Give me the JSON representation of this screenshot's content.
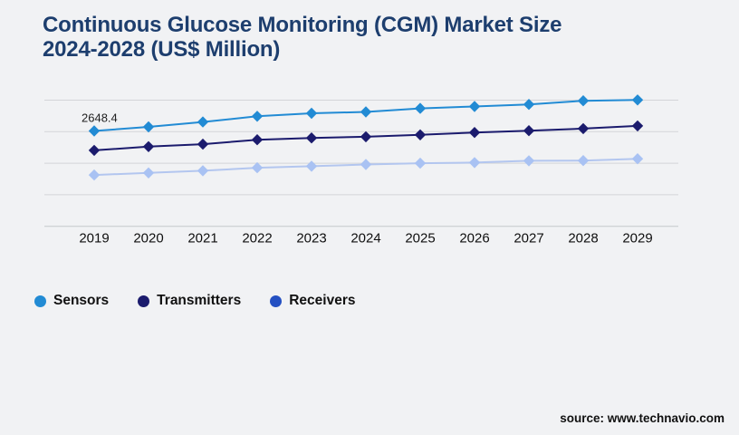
{
  "title": "Continuous Glucose Monitoring (CGM) Market Size\n2024-2028 (US$ Million)",
  "source": "source: www.technavio.com",
  "colors": {
    "background": "#f1f2f4",
    "title": "#1d3e6e",
    "grid": "#d4d5d8",
    "axis": "#c6c7ca",
    "text": "#111111",
    "data_label": "#1f1f1f"
  },
  "chart_data": {
    "type": "line",
    "title": "Continuous Glucose Monitoring (CGM) Market Size 2024-2028 (US$ Million)",
    "xlabel": "",
    "ylabel": "",
    "x": [
      "2019",
      "2020",
      "2021",
      "2022",
      "2023",
      "2024",
      "2025",
      "2026",
      "2027",
      "2028",
      "2029"
    ],
    "series": [
      {
        "name": "Sensors",
        "color": "#228bd4",
        "marker": "diamond",
        "values": [
          2648.4,
          2762,
          2898,
          3056,
          3140,
          3176,
          3276,
          3327,
          3385,
          3486,
          3508
        ]
      },
      {
        "name": "Transmitters",
        "color": "#1b1b6d",
        "marker": "diamond",
        "values": [
          2110,
          2212,
          2280,
          2404,
          2455,
          2488,
          2539,
          2606,
          2656,
          2714,
          2790
        ]
      },
      {
        "name": "Receivers",
        "color": "#b3c6ef",
        "marker_color": "#a9c2f3",
        "legend_color": "#2450c2",
        "marker": "diamond",
        "values": [
          1424,
          1482,
          1542,
          1625,
          1668,
          1718,
          1751,
          1769,
          1819,
          1826,
          1876
        ]
      }
    ],
    "annotation": {
      "text": "2648.4",
      "series": "Sensors",
      "x": "2019"
    },
    "ylim": [
      0,
      3504
    ],
    "grid": true,
    "gridline_count": 5,
    "y_tick_labels_visible": false,
    "legend_position": "bottom-left"
  }
}
